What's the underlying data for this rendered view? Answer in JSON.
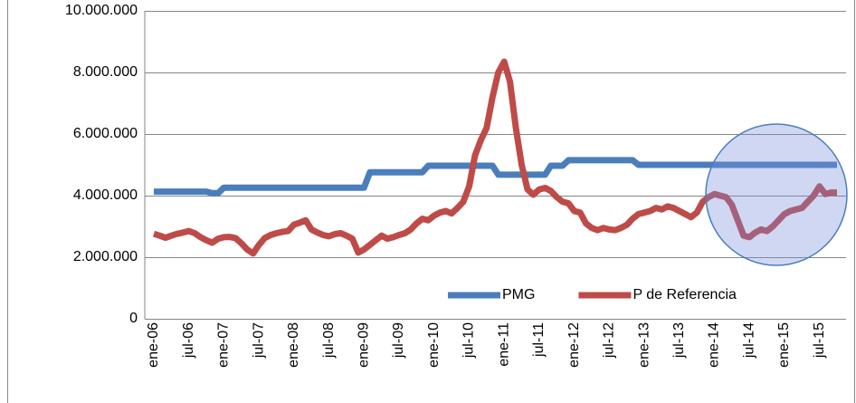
{
  "chart_data": {
    "type": "line",
    "categories": [
      "ene-06",
      null,
      null,
      null,
      null,
      null,
      "jul-06",
      null,
      null,
      null,
      null,
      null,
      "ene-07",
      null,
      null,
      null,
      null,
      null,
      "jul-07",
      null,
      null,
      null,
      null,
      null,
      "ene-08",
      null,
      null,
      null,
      null,
      null,
      "jul-08",
      null,
      null,
      null,
      null,
      null,
      "ene-09",
      null,
      null,
      null,
      null,
      null,
      "jul-09",
      null,
      null,
      null,
      null,
      null,
      "ene-10",
      null,
      null,
      null,
      null,
      null,
      "jul-10",
      null,
      null,
      null,
      null,
      null,
      "ene-11",
      null,
      null,
      null,
      null,
      null,
      "jul-11",
      null,
      null,
      null,
      null,
      null,
      "ene-12",
      null,
      null,
      null,
      null,
      null,
      "jul-12",
      null,
      null,
      null,
      null,
      null,
      "ene-13",
      null,
      null,
      null,
      null,
      null,
      "jul-13",
      null,
      null,
      null,
      null,
      null,
      "ene-14",
      null,
      null,
      null,
      null,
      null,
      "jul-14",
      null,
      null,
      null,
      null,
      null,
      "ene-15",
      null,
      null,
      null,
      null,
      null,
      "jul-15",
      null,
      null,
      null
    ],
    "series": [
      {
        "name": "PMG",
        "color": "#4a7ebb",
        "values": [
          4130000,
          4130000,
          4130000,
          4130000,
          4130000,
          4130000,
          4130000,
          4130000,
          4130000,
          4130000,
          4080000,
          4080000,
          4260000,
          4260000,
          4260000,
          4260000,
          4260000,
          4260000,
          4260000,
          4260000,
          4260000,
          4260000,
          4260000,
          4260000,
          4260000,
          4260000,
          4260000,
          4260000,
          4260000,
          4260000,
          4260000,
          4260000,
          4260000,
          4260000,
          4260000,
          4260000,
          4260000,
          4760000,
          4760000,
          4760000,
          4760000,
          4760000,
          4760000,
          4760000,
          4760000,
          4760000,
          4760000,
          4970000,
          4970000,
          4970000,
          4970000,
          4970000,
          4970000,
          4970000,
          4970000,
          4970000,
          4970000,
          4970000,
          4970000,
          4680000,
          4680000,
          4680000,
          4680000,
          4680000,
          4680000,
          4680000,
          4680000,
          4680000,
          4970000,
          4970000,
          4970000,
          5150000,
          5150000,
          5150000,
          5150000,
          5150000,
          5150000,
          5150000,
          5150000,
          5150000,
          5150000,
          5150000,
          5150000,
          5000000,
          5000000,
          5000000,
          5000000,
          5000000,
          5000000,
          5000000,
          5000000,
          5000000,
          5000000,
          5000000,
          5000000,
          5000000,
          5000000,
          5000000,
          5000000,
          5000000,
          5000000,
          5000000,
          5000000,
          5000000,
          5000000,
          5000000,
          5000000,
          5000000,
          5000000,
          5000000,
          5000000,
          5000000,
          5000000,
          5000000,
          5000000,
          5000000,
          5000000,
          5000000
        ]
      },
      {
        "name": "P de Referencia",
        "color": "#be4b48",
        "values": [
          2760000,
          2700000,
          2630000,
          2700000,
          2760000,
          2800000,
          2850000,
          2780000,
          2650000,
          2550000,
          2470000,
          2600000,
          2650000,
          2660000,
          2620000,
          2450000,
          2250000,
          2120000,
          2400000,
          2620000,
          2720000,
          2780000,
          2820000,
          2850000,
          3060000,
          3120000,
          3200000,
          2900000,
          2800000,
          2720000,
          2680000,
          2750000,
          2780000,
          2700000,
          2600000,
          2150000,
          2250000,
          2400000,
          2550000,
          2700000,
          2600000,
          2650000,
          2720000,
          2780000,
          2900000,
          3100000,
          3250000,
          3200000,
          3350000,
          3450000,
          3500000,
          3420000,
          3600000,
          3800000,
          4300000,
          5300000,
          5800000,
          6200000,
          7200000,
          8000000,
          8350000,
          7700000,
          6200000,
          5000000,
          4200000,
          4030000,
          4200000,
          4250000,
          4150000,
          3950000,
          3800000,
          3750000,
          3500000,
          3450000,
          3100000,
          2950000,
          2880000,
          2950000,
          2900000,
          2880000,
          2950000,
          3050000,
          3250000,
          3400000,
          3450000,
          3500000,
          3600000,
          3550000,
          3650000,
          3600000,
          3500000,
          3400000,
          3300000,
          3450000,
          3800000,
          3950000,
          4050000,
          4000000,
          3950000,
          3700000,
          3200000,
          2700000,
          2650000,
          2800000,
          2900000,
          2850000,
          3000000,
          3200000,
          3400000,
          3500000,
          3550000,
          3600000,
          3800000,
          4000000,
          4300000,
          4050000,
          4100000,
          4100000
        ]
      }
    ],
    "ylim": [
      0,
      10000000
    ],
    "yticks": [
      0,
      {
        "value": 2000000,
        "label": "2.000.000"
      },
      {
        "value": 4000000,
        "label": "4.000.000"
      },
      {
        "value": 6000000,
        "label": "6.000.000"
      },
      {
        "value": 8000000,
        "label": "8.000.000"
      },
      {
        "value": 10000000,
        "label": "10.000.000"
      }
    ],
    "grid": true,
    "legend": "lower right"
  }
}
